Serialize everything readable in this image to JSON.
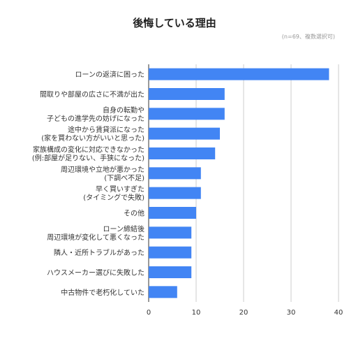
{
  "chart_data": {
    "type": "bar",
    "orientation": "horizontal",
    "title": "後悔している理由",
    "note": "(n=69、複数選択可)",
    "categories": [
      "ローンの返済に困った",
      "間取りや部屋の広さに不満が出た",
      "自身の転勤や\n子どもの進学先の妨げになった",
      "途中から賃貸派になった\n(家を買わない方がいいと思った)",
      "家族構成の変化に対応できなかった\n(例:部屋が足りない、手狭になった)",
      "周辺環境や立地が悪かった\n(下調べ不足)",
      "早く買いすぎた\n(タイミングで失敗)",
      "その他",
      "ローン締結後\n周辺環境が変化して悪くなった",
      "隣人・近所トラブルがあった",
      "ハウスメーカー選びに失敗した",
      "中古物件で老朽化していた"
    ],
    "values": [
      38,
      16,
      16,
      15,
      14,
      11,
      11,
      10,
      9,
      9,
      9,
      6
    ],
    "xlim": [
      0,
      40
    ],
    "xticks": [
      0,
      10,
      20,
      30,
      40
    ],
    "grid": true,
    "bar_color": "#4285f4",
    "grid_color": "#cccccc"
  }
}
